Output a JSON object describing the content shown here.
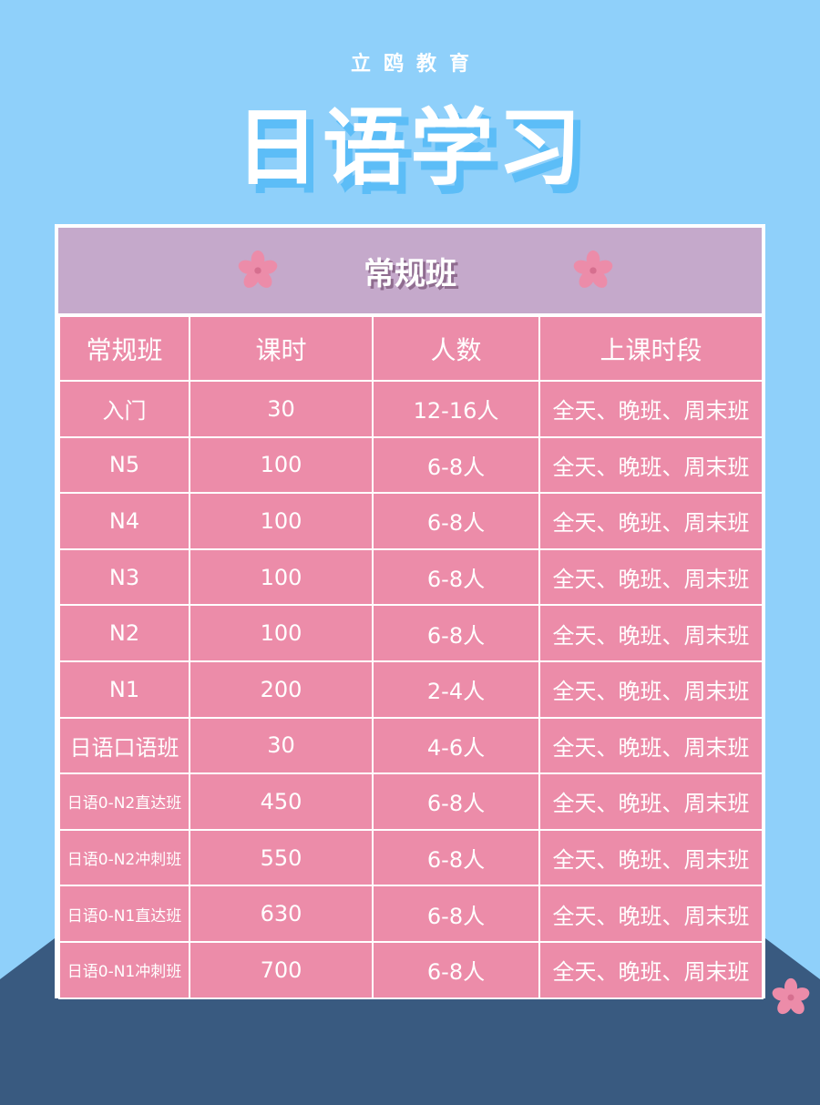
{
  "brand": "立鸥教育",
  "title": "日语学习",
  "banner_title": "常规班",
  "colors": {
    "sky": "#8fd0fa",
    "pink": "#ec8ca9",
    "banner": "#c5a9cb",
    "mountain": "#395a80"
  },
  "table": {
    "headers": [
      "常规班",
      "课时",
      "人数",
      "上课时段"
    ],
    "rows": [
      [
        "入门",
        "30",
        "12-16人",
        "全天、晚班、周末班"
      ],
      [
        "N5",
        "100",
        "6-8人",
        "全天、晚班、周末班"
      ],
      [
        "N4",
        "100",
        "6-8人",
        "全天、晚班、周末班"
      ],
      [
        "N3",
        "100",
        "6-8人",
        "全天、晚班、周末班"
      ],
      [
        "N2",
        "100",
        "6-8人",
        "全天、晚班、周末班"
      ],
      [
        "N1",
        "200",
        "2-4人",
        "全天、晚班、周末班"
      ],
      [
        "日语口语班",
        "30",
        "4-6人",
        "全天、晚班、周末班"
      ],
      [
        "日语0-N2直达班",
        "450",
        "6-8人",
        "全天、晚班、周末班"
      ],
      [
        "日语0-N2冲刺班",
        "550",
        "6-8人",
        "全天、晚班、周末班"
      ],
      [
        "日语0-N1直达班",
        "630",
        "6-8人",
        "全天、晚班、周末班"
      ],
      [
        "日语0-N1冲刺班",
        "700",
        "6-8人",
        "全天、晚班、周末班"
      ]
    ]
  }
}
